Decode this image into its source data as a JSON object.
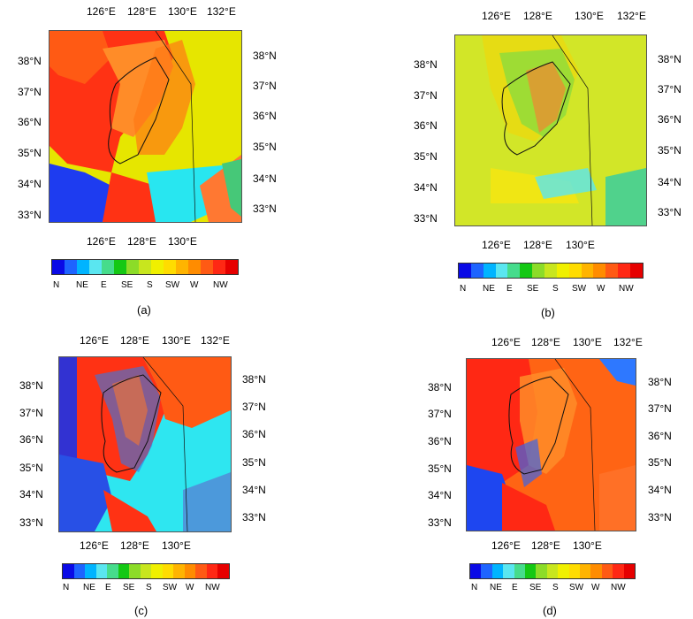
{
  "panels": [
    {
      "caption": "(a)"
    },
    {
      "caption": "(b)"
    },
    {
      "caption": "(c)"
    },
    {
      "caption": "(d)"
    }
  ],
  "lon_labels": [
    "126°E",
    "128°E",
    "130°E",
    "132°E"
  ],
  "lon_labels_bottom": [
    "126°E",
    "128°E",
    "130°E"
  ],
  "lat_labels": [
    "38°N",
    "37°N",
    "36°N",
    "35°N",
    "34°N",
    "33°N"
  ],
  "colorbar": {
    "labels": [
      "N",
      "NE",
      "E",
      "SE",
      "S",
      "SW",
      "W",
      "NW"
    ],
    "colors": [
      "#0a0ae6",
      "#1e64ff",
      "#00b4ff",
      "#5ae6f0",
      "#46dc8c",
      "#14c814",
      "#8cdc28",
      "#c8e61e",
      "#f0f000",
      "#ffdc00",
      "#ffb400",
      "#ff8c00",
      "#ff5a14",
      "#ff2814",
      "#e60000"
    ]
  }
}
